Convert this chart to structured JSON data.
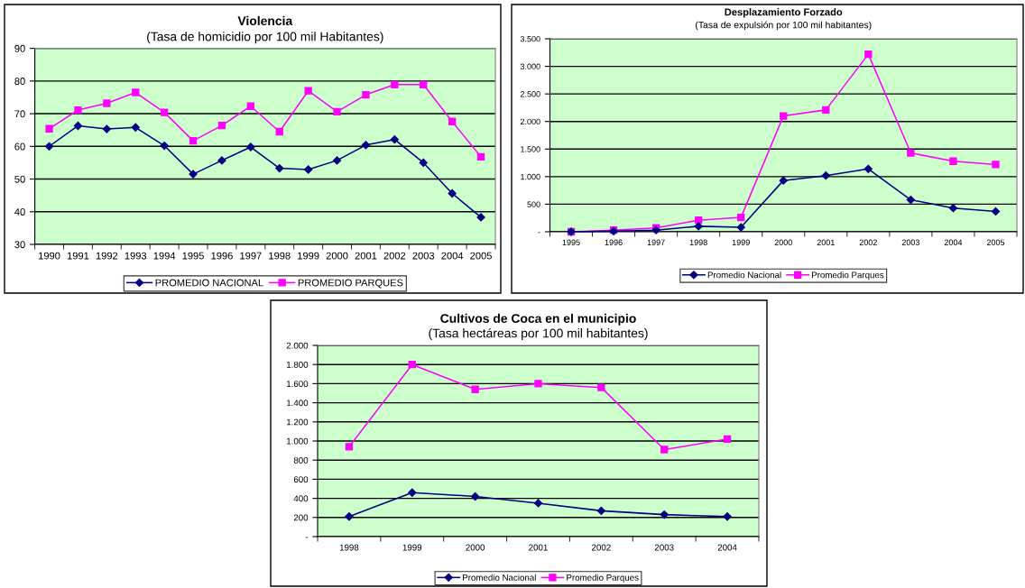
{
  "chart_data": [
    {
      "type": "line",
      "title": "Violencia",
      "subtitle": "(Tasa de homicidio por 100 mil Habitantes)",
      "categories": [
        "1990",
        "1991",
        "1992",
        "1993",
        "1994",
        "1995",
        "1996",
        "1997",
        "1998",
        "1999",
        "2000",
        "2001",
        "2002",
        "2003",
        "2004",
        "2005"
      ],
      "series": [
        {
          "name": "PROMEDIO NACIONAL",
          "color": "#000080",
          "marker": "diamond",
          "values": [
            60,
            66.3,
            65.3,
            65.8,
            60.2,
            51.5,
            55.7,
            59.8,
            53.3,
            52.9,
            55.7,
            60.4,
            62.1,
            55,
            45.6,
            38.3
          ]
        },
        {
          "name": "PROMEDIO PARQUES",
          "color": "#ff00ff",
          "marker": "square",
          "values": [
            65.4,
            71.1,
            73.2,
            76.5,
            70.4,
            61.7,
            66.4,
            72.3,
            64.5,
            77,
            70.6,
            75.8,
            78.9,
            78.9,
            67.6,
            56.8
          ]
        }
      ],
      "ylim": [
        30,
        90
      ],
      "yticks": [
        30,
        40,
        50,
        60,
        70,
        80,
        90
      ],
      "grid": "y",
      "legend": "bottom"
    },
    {
      "type": "line",
      "title": "Desplazamiento Forzado",
      "subtitle": "(Tasa de expulsión por 100 mil habitantes)",
      "categories": [
        "1995",
        "1996",
        "1997",
        "1998",
        "1999",
        "2000",
        "2001",
        "2002",
        "2003",
        "2004",
        "2005"
      ],
      "series": [
        {
          "name": "Promedio Nacional",
          "color": "#000080",
          "marker": "diamond",
          "values": [
            0,
            10,
            30,
            100,
            80,
            930,
            1020,
            1140,
            580,
            430,
            370
          ]
        },
        {
          "name": "Promedio Parques",
          "color": "#ff00ff",
          "marker": "square",
          "values": [
            0,
            30,
            70,
            210,
            260,
            2100,
            2210,
            3220,
            1430,
            1280,
            1220
          ]
        }
      ],
      "ylim": [
        0,
        3500
      ],
      "yticks": [
        {
          "value": 0,
          "label": "-"
        },
        {
          "value": 500,
          "label": "500"
        },
        {
          "value": 1000,
          "label": "1.000"
        },
        {
          "value": 1500,
          "label": "1.500"
        },
        {
          "value": 2000,
          "label": "2.000"
        },
        {
          "value": 2500,
          "label": "2.500"
        },
        {
          "value": 3000,
          "label": "3.000"
        },
        {
          "value": 3500,
          "label": "3.500"
        }
      ],
      "grid": "y",
      "legend": "bottom"
    },
    {
      "type": "line",
      "title": "Cultivos de Coca en el municipio",
      "subtitle": "(Tasa hectáreas por 100 mil habitantes)",
      "categories": [
        "1998",
        "1999",
        "2000",
        "2001",
        "2002",
        "2003",
        "2004"
      ],
      "series": [
        {
          "name": "Promedio Nacional",
          "color": "#000080",
          "marker": "diamond",
          "values": [
            210,
            460,
            420,
            350,
            270,
            230,
            210
          ]
        },
        {
          "name": "Promedio Parques",
          "color": "#ff00ff",
          "marker": "square",
          "values": [
            940,
            1800,
            1540,
            1600,
            1560,
            910,
            1020
          ]
        }
      ],
      "ylim": [
        0,
        2000
      ],
      "yticks": [
        {
          "value": 0,
          "label": "-"
        },
        {
          "value": 200,
          "label": "200"
        },
        {
          "value": 400,
          "label": "400"
        },
        {
          "value": 600,
          "label": "600"
        },
        {
          "value": 800,
          "label": "800"
        },
        {
          "value": 1000,
          "label": "1.000"
        },
        {
          "value": 1200,
          "label": "1.200"
        },
        {
          "value": 1400,
          "label": "1.400"
        },
        {
          "value": 1600,
          "label": "1.600"
        },
        {
          "value": 1800,
          "label": "1.800"
        },
        {
          "value": 2000,
          "label": "2.000"
        }
      ],
      "grid": "y",
      "legend": "bottom"
    }
  ]
}
